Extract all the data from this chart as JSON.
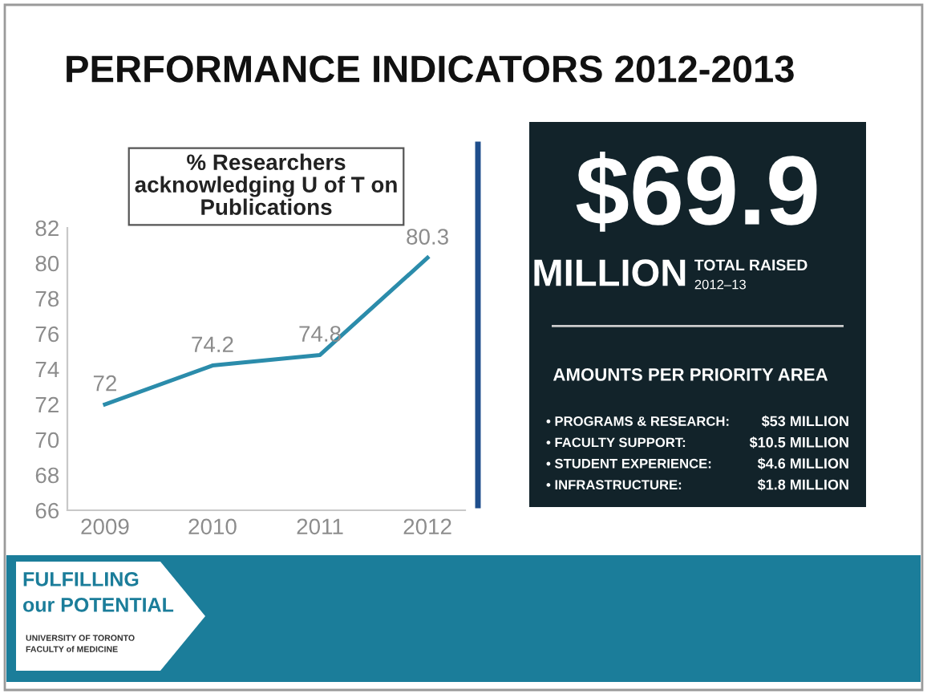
{
  "chart_data": [
    {
      "type": "line",
      "title": "% Researchers\nacknowledging U of T on\nPublications",
      "categories": [
        "2009",
        "2010",
        "2011",
        "2012"
      ],
      "series": [
        {
          "color": "#2b8cab",
          "values": [
            72,
            74.2,
            74.8,
            80.3
          ]
        }
      ],
      "ylim": [
        66,
        82
      ],
      "yticks": [
        66,
        68,
        70,
        72,
        74,
        76,
        78,
        80,
        82
      ],
      "grid": false,
      "legend": false,
      "marker": "none",
      "line_style": "solid",
      "data_labels": true,
      "annotations": [
        "PERFORMANCE INDICATORS 2012-2013"
      ]
    },
    {
      "type": "other",
      "annotations": [
        "$69.9",
        "MILLION",
        "TOTAL RAISED",
        "2012–13",
        "AMOUNTS PER PRIORITY AREA",
        "• PROGRAMS & RESEARCH:",
        "$53 MILLION",
        "• FACULTY SUPPORT:",
        "$10.5 MILLION",
        "• STUDENT EXPERIENCE:",
        "$4.6 MILLION",
        "• INFRASTRUCTURE:",
        "$1.8 MILLION",
        "FULFILLING",
        "our POTENTIAL",
        "UNIVERSITY OF TORONTO",
        "FACULTY of MEDICINE"
      ]
    }
  ]
}
